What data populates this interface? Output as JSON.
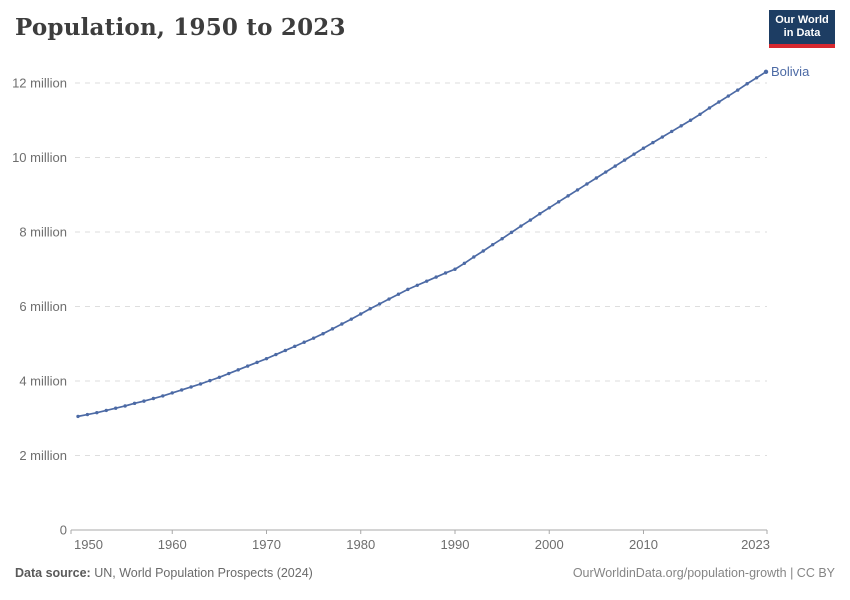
{
  "header": {
    "title": "Population, 1950 to 2023",
    "logo": {
      "line1": "Our World",
      "line2": "in Data"
    }
  },
  "entity": {
    "label": "Bolivia"
  },
  "axes": {
    "y_ticks": [
      {
        "value": 0,
        "label": "0"
      },
      {
        "value": 2,
        "label": "2 million"
      },
      {
        "value": 4,
        "label": "4 million"
      },
      {
        "value": 6,
        "label": "6 million"
      },
      {
        "value": 8,
        "label": "8 million"
      },
      {
        "value": 10,
        "label": "10 million"
      },
      {
        "value": 12,
        "label": "12 million"
      }
    ],
    "x_ticks": [
      {
        "year": 1950,
        "label": "1950"
      },
      {
        "year": 1960,
        "label": "1960"
      },
      {
        "year": 1970,
        "label": "1970"
      },
      {
        "year": 1980,
        "label": "1980"
      },
      {
        "year": 1990,
        "label": "1990"
      },
      {
        "year": 2000,
        "label": "2000"
      },
      {
        "year": 2010,
        "label": "2010"
      },
      {
        "year": 2023,
        "label": "2023"
      }
    ]
  },
  "footer": {
    "datasource_label": "Data source:",
    "datasource_value": " UN, World Population Prospects (2024)",
    "link": "OurWorldinData.org/population-growth",
    "license_text": " | CC BY"
  },
  "colors": {
    "line": "#4c6aa5",
    "grid": "#dedede",
    "axis": "#a8a8a8",
    "tick_label": "#6e6e6e"
  },
  "chart_data": {
    "type": "line",
    "title": "Population, 1950 to 2023",
    "entity": "Bolivia",
    "unit": "people (millions)",
    "xlim": [
      1949,
      2024
    ],
    "ylim": [
      0,
      12.6
    ],
    "grid": "horizontal dashed",
    "legend_position": "end-of-line label",
    "x": [
      1950,
      1951,
      1952,
      1953,
      1954,
      1955,
      1956,
      1957,
      1958,
      1959,
      1960,
      1961,
      1962,
      1963,
      1964,
      1965,
      1966,
      1967,
      1968,
      1969,
      1970,
      1971,
      1972,
      1973,
      1974,
      1975,
      1976,
      1977,
      1978,
      1979,
      1980,
      1981,
      1982,
      1983,
      1984,
      1985,
      1986,
      1987,
      1988,
      1989,
      1990,
      1991,
      1992,
      1993,
      1994,
      1995,
      1996,
      1997,
      1998,
      1999,
      2000,
      2001,
      2002,
      2003,
      2004,
      2005,
      2006,
      2007,
      2008,
      2009,
      2010,
      2011,
      2012,
      2013,
      2014,
      2015,
      2016,
      2017,
      2018,
      2019,
      2020,
      2021,
      2022,
      2023
    ],
    "values": [
      3.05,
      3.1,
      3.15,
      3.21,
      3.27,
      3.33,
      3.4,
      3.46,
      3.53,
      3.6,
      3.68,
      3.76,
      3.84,
      3.92,
      4.01,
      4.1,
      4.2,
      4.3,
      4.4,
      4.5,
      4.6,
      4.71,
      4.82,
      4.93,
      5.04,
      5.15,
      5.27,
      5.4,
      5.53,
      5.66,
      5.8,
      5.94,
      6.07,
      6.2,
      6.33,
      6.46,
      6.57,
      6.68,
      6.79,
      6.9,
      7.0,
      7.16,
      7.33,
      7.49,
      7.66,
      7.82,
      7.99,
      8.16,
      8.32,
      8.49,
      8.65,
      8.81,
      8.97,
      9.13,
      9.29,
      9.45,
      9.61,
      9.77,
      9.93,
      10.09,
      10.25,
      10.4,
      10.55,
      10.7,
      10.85,
      11.0,
      11.16,
      11.33,
      11.49,
      11.65,
      11.81,
      11.98,
      12.14,
      12.3
    ]
  }
}
